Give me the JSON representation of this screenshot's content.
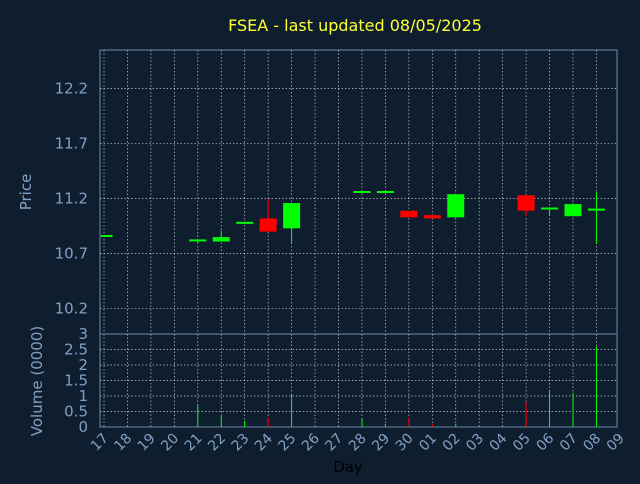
{
  "chart_data": {
    "type": "candlestick",
    "title": "FSEA - last updated 08/05/2025",
    "xlabel": "Day",
    "price_panel": {
      "ylabel": "Price",
      "yticks": [
        "10.2",
        "10.7",
        "11.2",
        "11.7",
        "12.2"
      ],
      "ylim": [
        9.97,
        12.55
      ]
    },
    "volume_panel": {
      "ylabel": "Volume (0000)",
      "yticks": [
        "0",
        "0.5",
        "1",
        "1.5",
        "2",
        "2.5",
        "3"
      ],
      "ylim": [
        0,
        3
      ]
    },
    "x_labels": [
      "17",
      "18",
      "19",
      "20",
      "21",
      "22",
      "23",
      "24",
      "25",
      "26",
      "27",
      "28",
      "29",
      "30",
      "01",
      "02",
      "03",
      "04",
      "05",
      "06",
      "07",
      "08",
      "09"
    ],
    "candles": [
      {
        "day": "17",
        "open": 10.86,
        "high": 10.86,
        "low": 10.86,
        "close": 10.86,
        "volume": 0.0
      },
      {
        "day": "21",
        "open": 10.81,
        "high": 10.83,
        "low": 10.8,
        "close": 10.82,
        "volume": 0.7
      },
      {
        "day": "22",
        "open": 10.81,
        "high": 10.91,
        "low": 10.81,
        "close": 10.85,
        "volume": 0.35
      },
      {
        "day": "23",
        "open": 10.98,
        "high": 10.98,
        "low": 10.98,
        "close": 10.98,
        "volume": 0.2
      },
      {
        "day": "24",
        "open": 11.02,
        "high": 11.2,
        "low": 10.9,
        "close": 10.9,
        "volume": 0.3
      },
      {
        "day": "25",
        "open": 10.93,
        "high": 11.16,
        "low": 10.8,
        "close": 11.16,
        "volume": 1.05
      },
      {
        "day": "28",
        "open": 11.26,
        "high": 11.26,
        "low": 11.26,
        "close": 11.26,
        "volume": 0.25
      },
      {
        "day": "29",
        "open": 11.26,
        "high": 11.26,
        "low": 11.26,
        "close": 11.26,
        "volume": 0.1
      },
      {
        "day": "30",
        "open": 11.09,
        "high": 11.09,
        "low": 11.03,
        "close": 11.03,
        "volume": 0.3
      },
      {
        "day": "01",
        "open": 11.05,
        "high": 11.05,
        "low": 11.02,
        "close": 11.02,
        "volume": 0.1
      },
      {
        "day": "02",
        "open": 11.03,
        "high": 11.24,
        "low": 11.03,
        "close": 11.24,
        "volume": 0.1
      },
      {
        "day": "05",
        "open": 11.23,
        "high": 11.23,
        "low": 11.04,
        "close": 11.09,
        "volume": 0.8
      },
      {
        "day": "06",
        "open": 11.1,
        "high": 11.12,
        "low": 11.05,
        "close": 11.11,
        "volume": 1.2
      },
      {
        "day": "07",
        "open": 11.04,
        "high": 11.16,
        "low": 11.04,
        "close": 11.15,
        "volume": 1.1
      },
      {
        "day": "08",
        "open": 11.09,
        "high": 11.26,
        "low": 10.79,
        "close": 11.1,
        "volume": 2.6
      }
    ],
    "grid": true,
    "colors": {
      "background": "#0f1e2e",
      "plot": "#0f1e2e",
      "axis_text": "#7fa1c6",
      "title": "#ffff33",
      "grid": "#ffffff",
      "up": "#00ff00",
      "down": "#ff0000",
      "label_dark": "#000000"
    }
  }
}
